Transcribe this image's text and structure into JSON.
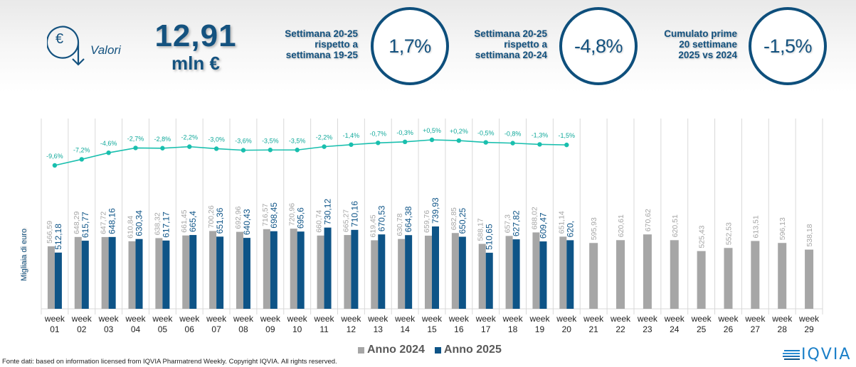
{
  "header": {
    "icon": "euro-circle-arrow-icon",
    "valori_label": "Valori",
    "total_value": "12,91",
    "total_unit": "mln €",
    "kpis": [
      {
        "label_lines": [
          "Settimana 20-25",
          "rispetto a",
          "settimana 19-25"
        ],
        "value": "1,7%"
      },
      {
        "label_lines": [
          "Settimana 20-25",
          "rispetto a",
          "settimana 20-24"
        ],
        "value": "-4,8%"
      },
      {
        "label_lines": [
          "Cumulato prime",
          "20 settimane",
          "2025 vs 2024"
        ],
        "value": "-1,5%"
      }
    ]
  },
  "colors": {
    "primary": "#14527f",
    "bar_2024": "#a6a6a6",
    "bar_2025": "#0e5487",
    "growth_line": "#19bfae",
    "gridline": "#d9d9d9"
  },
  "chart_data": {
    "type": "bar",
    "title": "",
    "xlabel": "",
    "ylabel": "Migliaia di euro",
    "categories": [
      "week 01",
      "week 02",
      "week 03",
      "week 04",
      "week 05",
      "week 06",
      "week 07",
      "week 08",
      "week 09",
      "week 10",
      "week 11",
      "week 12",
      "week 13",
      "week 14",
      "week 15",
      "week 16",
      "week 17",
      "week 18",
      "week 19",
      "week 20",
      "week 21",
      "week 22",
      "week 23",
      "week 24",
      "week 25",
      "week 26",
      "week 27",
      "week 28",
      "week 29"
    ],
    "series": [
      {
        "name": "Anno 2024",
        "values": [
          566.59,
          648.29,
          647.72,
          610.84,
          638.32,
          661.45,
          700.26,
          692.96,
          716.57,
          720.96,
          660.74,
          665.27,
          619.45,
          630.78,
          659.76,
          682.85,
          588.17,
          657.3,
          688.02,
          651.14,
          595.93,
          620.61,
          670.62,
          620.51,
          525.43,
          552.53,
          613.51,
          596.13,
          538.18
        ],
        "labels": [
          "566,59",
          "648,29",
          "647,72",
          "610,84",
          "638,32",
          "661,45",
          "700,26",
          "692,96",
          "716,57",
          "720,96",
          "660,74",
          "665,27",
          "619,45",
          "630,78",
          "659,76",
          "682,85",
          "588,17",
          "657,3",
          "688,02",
          "651,14",
          "595,93",
          "620,61",
          "670,62",
          "620,51",
          "525,43",
          "552,53",
          "613,51",
          "596,13",
          "538,18"
        ]
      },
      {
        "name": "Anno 2025",
        "values": [
          512.18,
          615.77,
          648.16,
          630.34,
          617.17,
          665.4,
          651.36,
          640.43,
          698.45,
          695.6,
          730.12,
          710.16,
          670.53,
          664.38,
          739.93,
          650.25,
          510.65,
          627.82,
          609.47,
          620.0
        ],
        "labels": [
          "512,18",
          "615,77",
          "648,16",
          "630,34",
          "617,17",
          "665,4",
          "651,36",
          "640,43",
          "698,45",
          "695,6",
          "730,12",
          "710,16",
          "670,53",
          "664,38",
          "739,93",
          "650,25",
          "510,65",
          "627,82",
          "609,47",
          "620,"
        ]
      }
    ],
    "growth_line": {
      "name": "Cumulato 2025 vs 2024",
      "values": [
        -9.6,
        -7.2,
        -4.6,
        -2.7,
        -2.8,
        -2.2,
        -3.0,
        -3.6,
        -3.5,
        -3.5,
        -2.2,
        -1.4,
        -0.7,
        -0.3,
        0.5,
        0.2,
        -0.5,
        -0.8,
        -1.3,
        -1.5
      ],
      "labels": [
        "-9,6%",
        "-7,2%",
        "-4,6%",
        "-2,7%",
        "-2,8%",
        "-2,2%",
        "-3,0%",
        "-3,6%",
        "-3,5%",
        "-3,5%",
        "-2,2%",
        "-1,4%",
        "-0,7%",
        "-0,3%",
        "+0,5%",
        "+0,2%",
        "-0,5%",
        "-0,8%",
        "-1,3%",
        "-1,5%"
      ]
    },
    "legend": [
      "Anno 2024",
      "Anno 2025"
    ],
    "legend_position": "bottom",
    "grid": "vertical separators"
  },
  "footer": {
    "source": "Fonte dati: based on information licensed from IQVIA Pharmatrend Weekly. Copyright IQVIA. All rights reserved.",
    "logo_text": "IQVIA"
  }
}
